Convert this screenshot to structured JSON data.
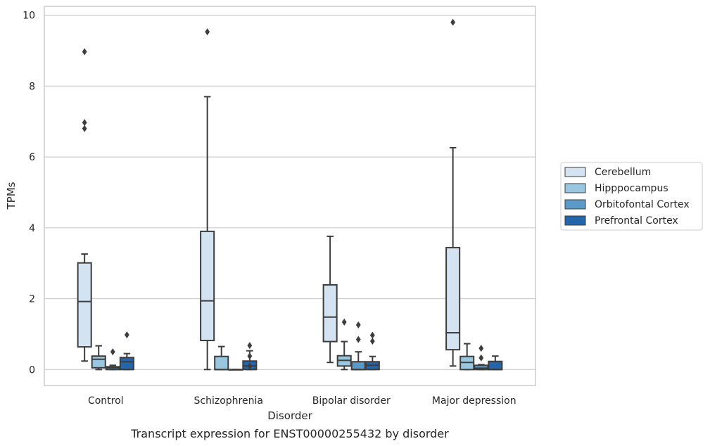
{
  "chart_data": {
    "type": "box",
    "caption": "Transcript expression for ENST00000255432 by disorder",
    "xlabel": "Disorder",
    "ylabel": "TPMs",
    "ylim": [
      -0.45,
      10.25
    ],
    "yticks": [
      0,
      2,
      4,
      6,
      8,
      10
    ],
    "grid": "horizontal",
    "legend_placement": "right",
    "categories": [
      "Control",
      "Schizophrenia",
      "Bipolar disorder",
      "Major depression"
    ],
    "series": [
      {
        "name": "Cerebellum",
        "color": "#d4e3f2",
        "boxes": [
          {
            "whisker_low": 0.24,
            "q1": 0.64,
            "median": 1.92,
            "q3": 3.01,
            "whisker_high": 3.26,
            "outliers": [
              6.8,
              6.97,
              8.97
            ]
          },
          {
            "whisker_low": 0.0,
            "q1": 0.82,
            "median": 1.94,
            "q3": 3.9,
            "whisker_high": 7.7,
            "outliers": [
              9.53
            ]
          },
          {
            "whisker_low": 0.2,
            "q1": 0.79,
            "median": 1.48,
            "q3": 2.39,
            "whisker_high": 3.76,
            "outliers": []
          },
          {
            "whisker_low": 0.1,
            "q1": 0.56,
            "median": 1.04,
            "q3": 3.44,
            "whisker_high": 6.26,
            "outliers": [
              9.8
            ]
          }
        ]
      },
      {
        "name": "Hipppocampus",
        "color": "#9ac7e0",
        "boxes": [
          {
            "whisker_low": 0.0,
            "q1": 0.05,
            "median": 0.29,
            "q3": 0.38,
            "whisker_high": 0.67,
            "outliers": []
          },
          {
            "whisker_low": 0.0,
            "q1": 0.0,
            "median": 0.0,
            "q3": 0.37,
            "whisker_high": 0.65,
            "outliers": []
          },
          {
            "whisker_low": 0.0,
            "q1": 0.1,
            "median": 0.26,
            "q3": 0.39,
            "whisker_high": 0.79,
            "outliers": [
              1.34
            ]
          },
          {
            "whisker_low": 0.0,
            "q1": 0.0,
            "median": 0.2,
            "q3": 0.37,
            "whisker_high": 0.73,
            "outliers": []
          }
        ]
      },
      {
        "name": "Orbitofontal Cortex",
        "color": "#5a9ac8",
        "boxes": [
          {
            "whisker_low": 0.0,
            "q1": 0.0,
            "median": 0.05,
            "q3": 0.08,
            "whisker_high": 0.12,
            "outliers": [
              0.5
            ]
          },
          {
            "whisker_low": 0.0,
            "q1": 0.0,
            "median": 0.0,
            "q3": 0.0,
            "whisker_high": 0.0,
            "outliers": []
          },
          {
            "whisker_low": 0.0,
            "q1": 0.0,
            "median": 0.0,
            "q3": 0.22,
            "whisker_high": 0.5,
            "outliers": [
              0.85,
              1.26
            ]
          },
          {
            "whisker_low": 0.0,
            "q1": 0.0,
            "median": 0.04,
            "q3": 0.12,
            "whisker_high": 0.14,
            "outliers": [
              0.33,
              0.6
            ]
          }
        ]
      },
      {
        "name": "Prefrontal Cortex",
        "color": "#2565a9",
        "boxes": [
          {
            "whisker_low": 0.0,
            "q1": 0.0,
            "median": 0.22,
            "q3": 0.34,
            "whisker_high": 0.45,
            "outliers": [
              0.98
            ]
          },
          {
            "whisker_low": 0.0,
            "q1": 0.0,
            "median": 0.1,
            "q3": 0.24,
            "whisker_high": 0.53,
            "outliers": [
              0.1,
              0.38,
              0.68
            ]
          },
          {
            "whisker_low": 0.0,
            "q1": 0.0,
            "median": 0.12,
            "q3": 0.22,
            "whisker_high": 0.37,
            "outliers": [
              0.8,
              0.97
            ]
          },
          {
            "whisker_low": 0.0,
            "q1": 0.0,
            "median": 0.0,
            "q3": 0.23,
            "whisker_high": 0.38,
            "outliers": []
          }
        ]
      }
    ]
  }
}
